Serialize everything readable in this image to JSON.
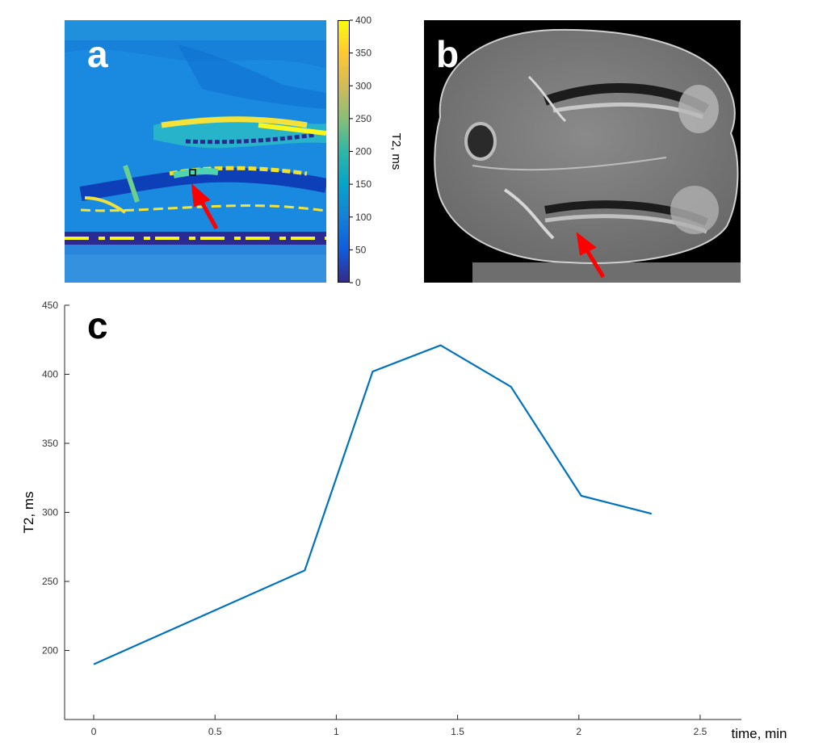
{
  "panels": {
    "a": {
      "letter": "a"
    },
    "b": {
      "letter": "b"
    },
    "c": {
      "letter": "c"
    }
  },
  "colorbar": {
    "label": "T2, ms",
    "ticks": [
      0,
      50,
      100,
      150,
      200,
      250,
      300,
      350,
      400
    ],
    "range": [
      0,
      400
    ],
    "colormap": "parula",
    "colors": [
      "#352a87",
      "#0f5cdd",
      "#1481d6",
      "#06a4ca",
      "#2eb7a4",
      "#87bf77",
      "#d1bb59",
      "#fec832",
      "#f9fb0e"
    ]
  },
  "annotation": {
    "arrow_color": "#ff0000",
    "roi_marker": "black-square"
  },
  "chart_data": {
    "type": "line",
    "xlabel": "time, min",
    "ylabel": "T2, ms",
    "xlim": [
      -0.12,
      2.67
    ],
    "ylim": [
      150,
      450
    ],
    "xticks": [
      0,
      0.5,
      1,
      1.5,
      2,
      2.5
    ],
    "xtick_labels": [
      "0",
      "0.5",
      "1",
      "1.5",
      "2",
      "2.5"
    ],
    "yticks": [
      200,
      250,
      300,
      350,
      400,
      450
    ],
    "ytick_labels": [
      "200",
      "250",
      "300",
      "350",
      "400",
      "450"
    ],
    "grid": false,
    "line_color": "#0072bd",
    "series": [
      {
        "x": [
          0,
          0.87,
          1.15,
          1.43,
          1.72,
          2.01,
          2.3
        ],
        "y": [
          190,
          258,
          402,
          421,
          391,
          312,
          299
        ]
      }
    ]
  }
}
